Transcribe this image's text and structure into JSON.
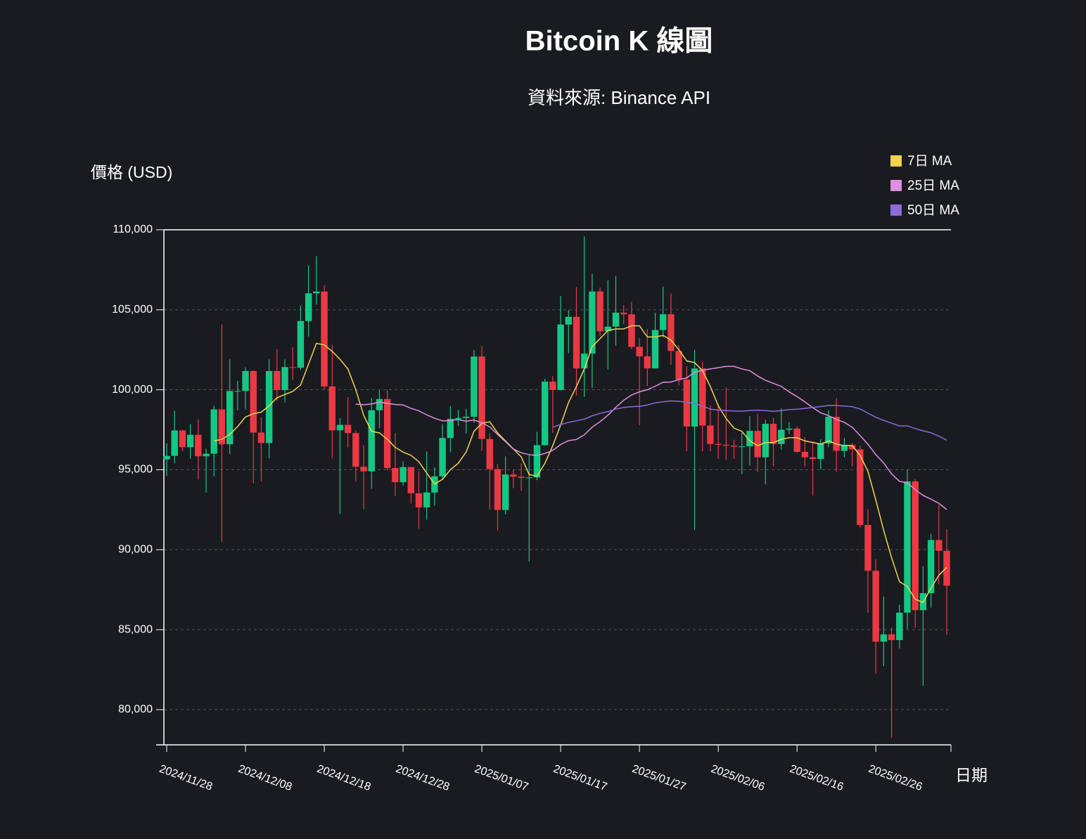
{
  "chart_data": {
    "type": "candlestick",
    "title": "Bitcoin K 線圖",
    "subtitle": "資料來源: Binance API",
    "x_label": "日期",
    "y_label": "價格 (USD)",
    "categories": [
      "2024/11/28",
      null,
      null,
      null,
      null,
      null,
      null,
      null,
      null,
      null,
      "2024/12/08",
      null,
      null,
      null,
      null,
      null,
      null,
      null,
      null,
      null,
      "2024/12/18",
      null,
      null,
      null,
      null,
      null,
      null,
      null,
      null,
      null,
      "2024/12/28",
      null,
      null,
      null,
      null,
      null,
      null,
      null,
      null,
      null,
      "2025/01/07",
      null,
      null,
      null,
      null,
      null,
      null,
      null,
      null,
      null,
      "2025/01/17",
      null,
      null,
      null,
      null,
      null,
      null,
      null,
      null,
      null,
      "2025/01/27",
      null,
      null,
      null,
      null,
      null,
      null,
      null,
      null,
      null,
      "2025/02/06",
      null,
      null,
      null,
      null,
      null,
      null,
      null,
      null,
      null,
      "2025/02/16",
      null,
      null,
      null,
      null,
      null,
      null,
      null,
      null,
      null,
      "2025/02/26",
      null,
      null,
      null,
      null,
      null,
      null,
      null,
      null,
      null
    ],
    "open": [
      95644,
      95865,
      97453,
      96407,
      97185,
      95840,
      96002,
      98768,
      96593,
      99920,
      99923,
      101170,
      97323,
      96670,
      101170,
      99980,
      101418,
      101372,
      104298,
      106029,
      106140,
      100204,
      97461,
      97805,
      97291,
      95186,
      94899,
      98717,
      99420,
      95105,
      94220,
      95164,
      93530,
      92644,
      93576,
      94591,
      96984,
      98174,
      98237,
      98314,
      102078,
      96922,
      95043,
      92484,
      94701,
      94566,
      94488,
      94516,
      96534,
      100505,
      99987,
      104077,
      104556,
      101331,
      102260,
      106144,
      103654,
      103944,
      104820,
      104714,
      102682,
      102087,
      101332,
      103733,
      104722,
      102429,
      100635,
      97700,
      101328,
      97763,
      96612,
      96554,
      96506,
      96444,
      96462,
      97430,
      95778,
      97870,
      96608,
      97500,
      97569,
      96118,
      95780,
      95671,
      96644,
      98305,
      96181,
      96554,
      96274,
      91552,
      88680,
      84250,
      84708,
      84349,
      86064,
      94270,
      86221,
      87281,
      90606,
      89931
    ],
    "high": [
      96650,
      98693,
      97499,
      97836,
      98130,
      96305,
      99000,
      104088,
      101898,
      100551,
      101399,
      101215,
      98270,
      101935,
      102540,
      101895,
      102650,
      105250,
      107780,
      108353,
      106525,
      102800,
      98233,
      99540,
      97448,
      96538,
      99487,
      99960,
      99963,
      97294,
      95525,
      95174,
      94903,
      96150,
      95150,
      97839,
      98976,
      98734,
      98813,
      102482,
      102724,
      97258,
      95350,
      95837,
      94977,
      95400,
      95900,
      97371,
      100681,
      100870,
      105865,
      104988,
      106422,
      109588,
      107240,
      106394,
      106850,
      107120,
      105286,
      105500,
      103220,
      103783,
      104800,
      106457,
      106012,
      102783,
      101456,
      102500,
      101740,
      99000,
      99120,
      100137,
      96880,
      97323,
      98345,
      98500,
      98119,
      98249,
      98826,
      97972,
      97704,
      97046,
      96753,
      96899,
      98711,
      99475,
      96980,
      96670,
      96503,
      92540,
      89414,
      87078,
      85120,
      86558,
      95000,
      94416,
      88967,
      90998,
      92810,
      91283
    ],
    "low": [
      94610,
      95407,
      96174,
      95694,
      94395,
      93579,
      94587,
      90500,
      95981,
      98711,
      98771,
      94150,
      94256,
      95711,
      99311,
      99205,
      100609,
      101224,
      103322,
      105321,
      100000,
      95700,
      92232,
      96398,
      94250,
      92520,
      93806,
      97600,
      94950,
      93372,
      94014,
      92881,
      91317,
      91880,
      92750,
      94392,
      96100,
      97735,
      97250,
      97926,
      96181,
      92500,
      91203,
      92206,
      93840,
      93700,
      89256,
      94346,
      96500,
      97300,
      99950,
      102277,
      99651,
      99550,
      100119,
      103340,
      101262,
      102750,
      104106,
      102520,
      97777,
      100233,
      101328,
      103278,
      101560,
      100279,
      96150,
      91231,
      96150,
      96155,
      95676,
      95620,
      95688,
      94713,
      95256,
      94850,
      94088,
      95217,
      96252,
      97223,
      96046,
      95205,
      93388,
      95026,
      96415,
      94871,
      95770,
      95200,
      91349,
      86050,
      82256,
      82716,
      78258,
      83824,
      85050,
      85117,
      81500,
      86379,
      87836,
      84667
    ],
    "close": [
      95865,
      97453,
      96407,
      97185,
      95840,
      96002,
      98768,
      96593,
      99920,
      99923,
      101170,
      97323,
      96670,
      101170,
      99980,
      101418,
      101372,
      104298,
      106029,
      106140,
      100204,
      97461,
      97805,
      97291,
      95186,
      94899,
      98717,
      99420,
      95105,
      94220,
      95164,
      93530,
      92644,
      93576,
      94591,
      96984,
      98174,
      98237,
      98314,
      102078,
      96922,
      95043,
      92484,
      94701,
      94566,
      94488,
      94516,
      96534,
      100505,
      99987,
      104077,
      104556,
      101331,
      102260,
      106144,
      103654,
      103944,
      104820,
      104714,
      102682,
      102087,
      101332,
      103733,
      104722,
      102429,
      100635,
      97700,
      101328,
      97763,
      96612,
      96554,
      96506,
      96444,
      96462,
      97430,
      95778,
      97870,
      96608,
      97500,
      97569,
      96118,
      95780,
      95671,
      96644,
      98305,
      96181,
      96554,
      96274,
      91552,
      88680,
      84250,
      84708,
      84349,
      86064,
      94270,
      86221,
      87281,
      90606,
      89931,
      87750
    ],
    "up_color": "#16c784",
    "down_color": "#ea3943",
    "series": [
      {
        "name": "7日 MA",
        "color": "#f0d24e",
        "values": [
          null,
          null,
          null,
          null,
          null,
          null,
          96800,
          96900,
          97200,
          97700,
          98300,
          98500,
          98600,
          99000,
          99500,
          99700,
          99900,
          100300,
          101600,
          102900,
          102800,
          102400,
          101900,
          101300,
          100000,
          98400,
          97400,
          97300,
          96900,
          96400,
          96100,
          95900,
          95500,
          94800,
          94100,
          94400,
          95000,
          95400,
          96100,
          97400,
          97900,
          98000,
          97300,
          96800,
          96300,
          95800,
          94700,
          94600,
          95400,
          96500,
          97800,
          99200,
          100200,
          101300,
          102700,
          103200,
          103700,
          103800,
          103800,
          104000,
          104000,
          103300,
          103300,
          103400,
          103100,
          102500,
          101800,
          101700,
          101200,
          100200,
          99000,
          98200,
          97600,
          97400,
          96800,
          96500,
          96700,
          96700,
          96900,
          97000,
          97000,
          96800,
          96700,
          96600,
          96800,
          96600,
          96500,
          96500,
          95900,
          94900,
          93100,
          91200,
          89500,
          88000,
          87700,
          86900,
          86700,
          87600,
          88400,
          88900
        ]
      },
      {
        "name": "25日 MA",
        "color": "#dd8fe0",
        "values": [
          null,
          null,
          null,
          null,
          null,
          null,
          null,
          null,
          null,
          null,
          null,
          null,
          null,
          null,
          null,
          null,
          null,
          null,
          null,
          null,
          null,
          null,
          null,
          null,
          99100,
          99060,
          99110,
          99230,
          99150,
          99080,
          99050,
          98840,
          98680,
          98430,
          98220,
          98050,
          98080,
          98140,
          98030,
          98110,
          97930,
          97680,
          97200,
          96750,
          96290,
          96060,
          95940,
          95890,
          96020,
          96210,
          96580,
          96820,
          96890,
          97180,
          97660,
          98000,
          98410,
          98900,
          99340,
          99670,
          99870,
          100000,
          100220,
          100470,
          100480,
          100630,
          100740,
          101090,
          101220,
          101300,
          101380,
          101460,
          101460,
          101300,
          101190,
          100860,
          100590,
          100400,
          100210,
          99870,
          99570,
          99240,
          98880,
          98560,
          98380,
          98140,
          97960,
          97660,
          97140,
          96590,
          95940,
          95420,
          94740,
          94270,
          94180,
          93760,
          93390,
          93160,
          92900,
          92510
        ]
      },
      {
        "name": "50日 MA",
        "color": "#8b6ad8",
        "values": [
          null,
          null,
          null,
          null,
          null,
          null,
          null,
          null,
          null,
          null,
          null,
          null,
          null,
          null,
          null,
          null,
          null,
          null,
          null,
          null,
          null,
          null,
          null,
          null,
          null,
          null,
          null,
          null,
          null,
          null,
          null,
          null,
          null,
          null,
          null,
          null,
          null,
          null,
          null,
          null,
          null,
          null,
          null,
          null,
          null,
          null,
          null,
          null,
          null,
          97660,
          97820,
          97960,
          98060,
          98160,
          98370,
          98520,
          98630,
          98790,
          98890,
          98940,
          98960,
          99040,
          99180,
          99250,
          99300,
          99280,
          99210,
          99150,
          98980,
          98790,
          98720,
          98700,
          98670,
          98660,
          98700,
          98720,
          98700,
          98650,
          98700,
          98760,
          98780,
          98830,
          98890,
          98950,
          99020,
          99010,
          98980,
          98940,
          98800,
          98540,
          98280,
          98080,
          97910,
          97740,
          97740,
          97570,
          97430,
          97310,
          97100,
          96850
        ]
      }
    ],
    "ylim": [
      77800,
      110000
    ],
    "yticks": [
      {
        "value": 80000,
        "label": "80,000"
      },
      {
        "value": 85000,
        "label": "85,000"
      },
      {
        "value": 90000,
        "label": "90,000"
      },
      {
        "value": 95000,
        "label": "95,000"
      },
      {
        "value": 100000,
        "label": "100,000"
      },
      {
        "value": 105000,
        "label": "105,000"
      },
      {
        "value": 110000,
        "label": "110,000"
      }
    ],
    "grid": true,
    "legend": "top-right"
  }
}
